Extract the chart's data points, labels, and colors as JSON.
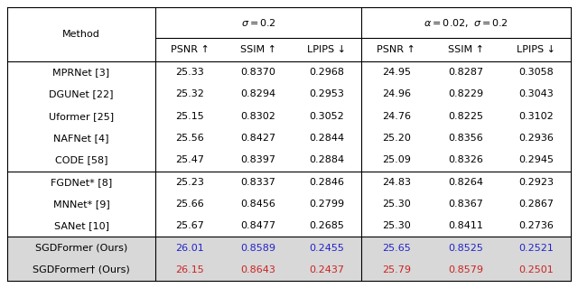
{
  "sigma_header": "σ = 0.2",
  "alpha_header": "α = 0.02, σ = 0.2",
  "col_headers": [
    "PSNR ↑",
    "SSIM ↑",
    "LPIPS ↓",
    "PSNR ↑",
    "SSIM ↑",
    "LPIPS ↓"
  ],
  "method_header": "Method",
  "rows": [
    [
      "MPRNet [3]",
      "25.33",
      "0.8370",
      "0.2968",
      "24.95",
      "0.8287",
      "0.3058"
    ],
    [
      "DGUNet [22]",
      "25.32",
      "0.8294",
      "0.2953",
      "24.96",
      "0.8229",
      "0.3043"
    ],
    [
      "Uformer [25]",
      "25.15",
      "0.8302",
      "0.3052",
      "24.76",
      "0.8225",
      "0.3102"
    ],
    [
      "NAFNet [4]",
      "25.56",
      "0.8427",
      "0.2844",
      "25.20",
      "0.8356",
      "0.2936"
    ],
    [
      "CODE [58]",
      "25.47",
      "0.8397",
      "0.2884",
      "25.09",
      "0.8326",
      "0.2945"
    ],
    [
      "FGDNet* [8]",
      "25.23",
      "0.8337",
      "0.2846",
      "24.83",
      "0.8264",
      "0.2923"
    ],
    [
      "MNNet* [9]",
      "25.66",
      "0.8456",
      "0.2799",
      "25.30",
      "0.8367",
      "0.2867"
    ],
    [
      "SANet [10]",
      "25.67",
      "0.8477",
      "0.2685",
      "25.30",
      "0.8411",
      "0.2736"
    ],
    [
      "SGDFormer (Ours)",
      "26.01",
      "0.8589",
      "0.2455",
      "25.65",
      "0.8525",
      "0.2521"
    ],
    [
      "SGDFormer† (Ours)",
      "26.15",
      "0.8643",
      "0.2437",
      "25.79",
      "0.8579",
      "0.2501"
    ]
  ],
  "value_colors": [
    [
      "black",
      "black",
      "black",
      "black",
      "black",
      "black"
    ],
    [
      "black",
      "black",
      "black",
      "black",
      "black",
      "black"
    ],
    [
      "black",
      "black",
      "black",
      "black",
      "black",
      "black"
    ],
    [
      "black",
      "black",
      "black",
      "black",
      "black",
      "black"
    ],
    [
      "black",
      "black",
      "black",
      "black",
      "black",
      "black"
    ],
    [
      "black",
      "black",
      "black",
      "black",
      "black",
      "black"
    ],
    [
      "black",
      "black",
      "black",
      "black",
      "black",
      "black"
    ],
    [
      "black",
      "black",
      "black",
      "black",
      "black",
      "black"
    ],
    [
      "#2222cc",
      "#2222cc",
      "#2222cc",
      "#2222cc",
      "#2222cc",
      "#2222cc"
    ],
    [
      "#cc2222",
      "#cc2222",
      "#cc2222",
      "#cc2222",
      "#cc2222",
      "#cc2222"
    ]
  ],
  "method_colors": [
    "black",
    "black",
    "black",
    "black",
    "black",
    "black",
    "black",
    "black",
    "black",
    "black"
  ],
  "gray_bg": "#d8d8d8",
  "bg_color": "white",
  "line_color": "black",
  "font_size": 8.0,
  "header_font_size": 8.0
}
